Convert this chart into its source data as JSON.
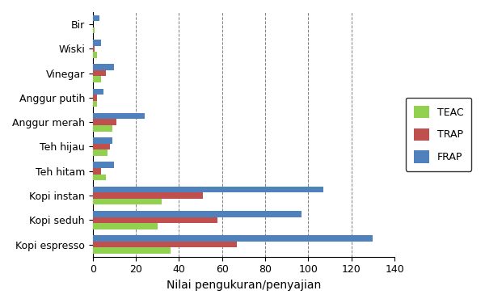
{
  "categories": [
    "Bir",
    "Wiski",
    "Vinegar",
    "Anggur putih",
    "Anggur merah",
    "Teh hijau",
    "Teh hitam",
    "Kopi instan",
    "Kopi seduh",
    "Kopi espresso"
  ],
  "TEAC": [
    1,
    2,
    4,
    2,
    9,
    7,
    6,
    32,
    30,
    36
  ],
  "TRAP": [
    0,
    1,
    6,
    2,
    11,
    8,
    4,
    51,
    58,
    67
  ],
  "FRAP": [
    3,
    4,
    10,
    5,
    24,
    9,
    10,
    107,
    97,
    130
  ],
  "colors": {
    "TEAC": "#92D050",
    "TRAP": "#C0504D",
    "FRAP": "#4F81BD"
  },
  "xlabel": "Nilai pengukuran/penyajian",
  "xlim": [
    0,
    140
  ],
  "xticks": [
    0,
    20,
    40,
    60,
    80,
    100,
    120,
    140
  ],
  "legend_labels": [
    "TEAC",
    "TRAP",
    "FRAP"
  ],
  "bar_height": 0.25,
  "figsize": [
    6.0,
    3.75
  ],
  "dpi": 100
}
